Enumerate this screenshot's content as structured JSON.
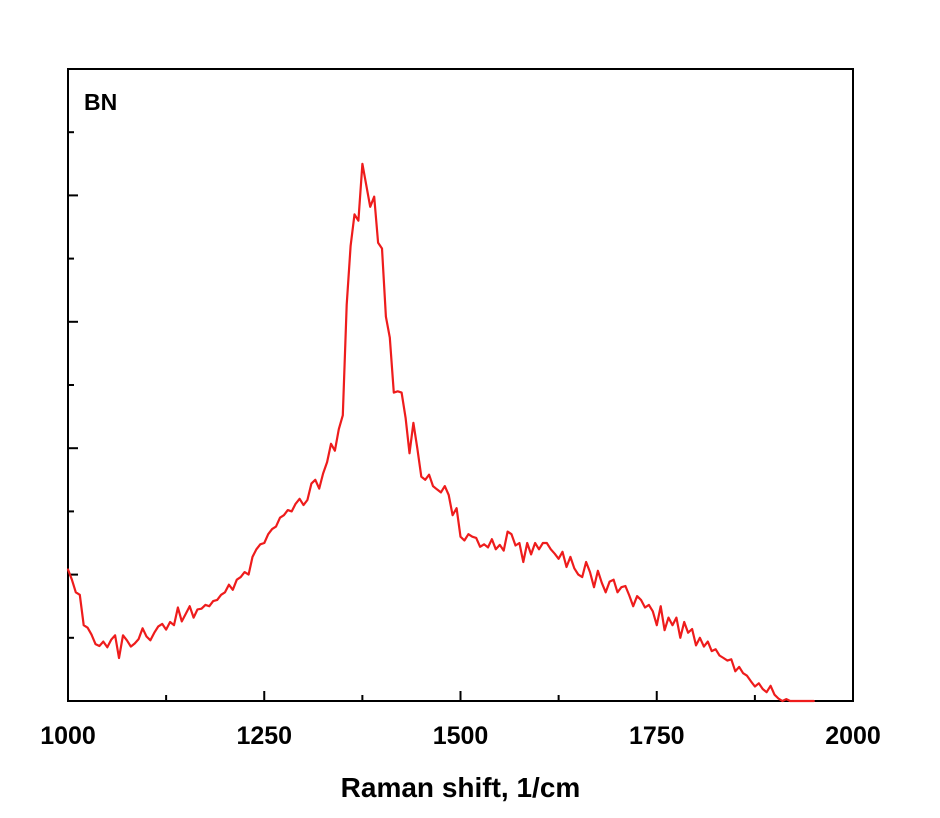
{
  "chart_data": {
    "type": "line",
    "title": "",
    "annotation": "BN",
    "xlabel": "Raman shift, 1/cm",
    "ylabel": "",
    "xlim": [
      1000,
      2000
    ],
    "ylim": [
      0,
      1000
    ],
    "x_ticks": [
      1000,
      1250,
      1500,
      1750,
      2000
    ],
    "x_tick_labels": [
      "1000",
      "1250",
      "1500",
      "1750",
      "2000"
    ],
    "x_minor_ticks": [
      1125,
      1375,
      1625,
      1875
    ],
    "y_ticks": [
      100,
      200,
      300,
      400,
      500,
      600,
      700,
      800,
      900
    ],
    "y_tick_labels_shown": false,
    "grid": false,
    "legend": "none",
    "series": [
      {
        "color": "#ee1c1c",
        "x": [
          1000,
          1005,
          1010,
          1015,
          1020,
          1025,
          1030,
          1035,
          1040,
          1045,
          1050,
          1055,
          1060,
          1065,
          1070,
          1075,
          1080,
          1085,
          1090,
          1095,
          1100,
          1105,
          1110,
          1115,
          1120,
          1125,
          1130,
          1135,
          1140,
          1145,
          1150,
          1155,
          1160,
          1165,
          1170,
          1175,
          1180,
          1185,
          1190,
          1195,
          1200,
          1205,
          1210,
          1215,
          1220,
          1225,
          1230,
          1235,
          1240,
          1245,
          1250,
          1255,
          1260,
          1265,
          1270,
          1275,
          1280,
          1285,
          1290,
          1295,
          1300,
          1305,
          1310,
          1315,
          1320,
          1325,
          1330,
          1335,
          1340,
          1345,
          1350,
          1355,
          1360,
          1365,
          1370,
          1375,
          1380,
          1385,
          1390,
          1395,
          1400,
          1405,
          1410,
          1415,
          1420,
          1425,
          1430,
          1435,
          1440,
          1445,
          1450,
          1455,
          1460,
          1465,
          1470,
          1475,
          1480,
          1485,
          1490,
          1495,
          1500,
          1505,
          1510,
          1515,
          1520,
          1525,
          1530,
          1535,
          1540,
          1545,
          1550,
          1555,
          1560,
          1565,
          1570,
          1575,
          1580,
          1585,
          1590,
          1595,
          1600,
          1605,
          1610,
          1615,
          1620,
          1625,
          1630,
          1635,
          1640,
          1645,
          1650,
          1655,
          1660,
          1665,
          1670,
          1675,
          1680,
          1685,
          1690,
          1695,
          1700,
          1705,
          1710,
          1715,
          1720,
          1725,
          1730,
          1735,
          1740,
          1745,
          1750,
          1755,
          1760,
          1765,
          1770,
          1775,
          1780,
          1785,
          1790,
          1795,
          1800,
          1805,
          1810,
          1815,
          1820,
          1825,
          1830,
          1835,
          1840,
          1845,
          1850,
          1855,
          1860,
          1865,
          1870,
          1875,
          1880,
          1885,
          1890,
          1895,
          1900,
          1905,
          1910,
          1915,
          1920,
          1925,
          1930,
          1935,
          1940,
          1945,
          1950
        ],
        "y": [
          208,
          192,
          172,
          168,
          120,
          116,
          105,
          90,
          87,
          94,
          85,
          97,
          104,
          68,
          104,
          96,
          86,
          91,
          98,
          115,
          102,
          96,
          108,
          118,
          122,
          113,
          125,
          120,
          148,
          126,
          138,
          150,
          132,
          145,
          146,
          152,
          150,
          158,
          160,
          168,
          172,
          184,
          176,
          192,
          196,
          204,
          200,
          228,
          240,
          248,
          250,
          264,
          272,
          276,
          290,
          294,
          302,
          300,
          312,
          320,
          310,
          318,
          344,
          350,
          336,
          360,
          378,
          407,
          396,
          430,
          452,
          627,
          720,
          770,
          760,
          850,
          816,
          782,
          798,
          725,
          716,
          608,
          575,
          488,
          490,
          488,
          448,
          392,
          440,
          400,
          355,
          350,
          358,
          340,
          335,
          330,
          340,
          326,
          294,
          305,
          260,
          254,
          264,
          260,
          258,
          244,
          248,
          243,
          256,
          240,
          247,
          238,
          268,
          264,
          246,
          250,
          220,
          250,
          232,
          250,
          240,
          250,
          250,
          240,
          233,
          225,
          236,
          212,
          228,
          210,
          200,
          196,
          220,
          204,
          180,
          206,
          187,
          172,
          189,
          192,
          172,
          180,
          182,
          167,
          150,
          166,
          160,
          148,
          152,
          142,
          120,
          150,
          112,
          132,
          120,
          132,
          100,
          125,
          108,
          114,
          88,
          100,
          86,
          94,
          79,
          82,
          72,
          68,
          64,
          66,
          47,
          54,
          44,
          40,
          31,
          23,
          28,
          19,
          14,
          24,
          10,
          4,
          0,
          3,
          -7,
          -10,
          -13,
          -15,
          -18,
          -20,
          0
        ]
      }
    ]
  }
}
